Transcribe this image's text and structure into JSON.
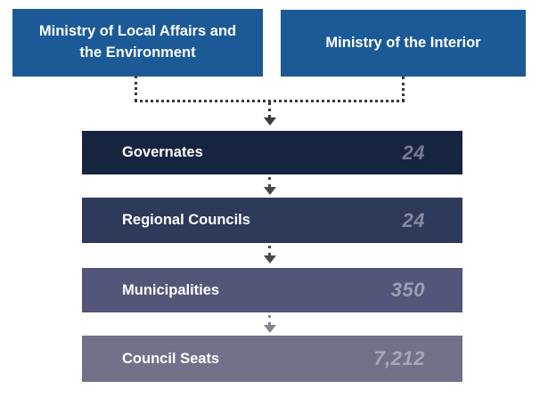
{
  "ministries": [
    {
      "label": "Ministry of Local Affairs and the Environment"
    },
    {
      "label": "Ministry of the Interior"
    }
  ],
  "rows": [
    {
      "label": "Governates",
      "value": "24",
      "bg": "#172440",
      "value_color": "#757b93"
    },
    {
      "label": "Regional Councils",
      "value": "24",
      "bg": "#2e3a59",
      "value_color": "#8489a1"
    },
    {
      "label": "Municipalities",
      "value": "350",
      "bg": "#535678",
      "value_color": "#9c9eb4"
    },
    {
      "label": "Council Seats",
      "value": "7,212",
      "bg": "#6f7289",
      "value_color": "#a6a7b9"
    }
  ],
  "colors": {
    "ministry_blue": "#1b5a97",
    "connector": "#3a3a3e",
    "arrow_1": "#47474b",
    "arrow_2": "#4a4a4e",
    "arrow_3": "#85858d",
    "label_text": "#ffffff"
  }
}
